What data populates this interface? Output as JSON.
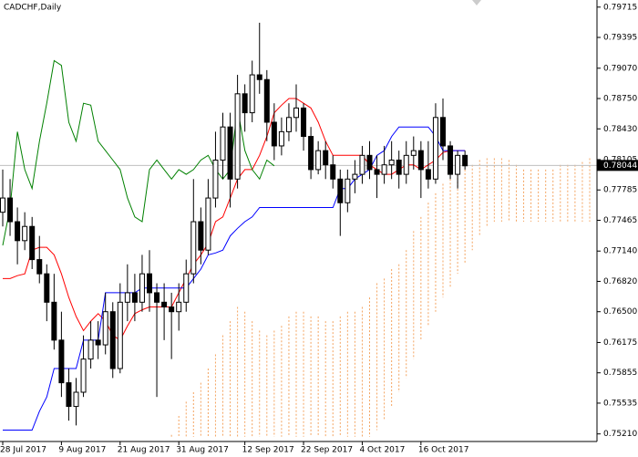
{
  "chart_data": {
    "type": "candlestick",
    "title": "CADCHF,Daily",
    "categories": [
      "28 Jul 2017",
      null,
      null,
      null,
      null,
      null,
      null,
      null,
      "9 Aug 2017",
      null,
      null,
      null,
      null,
      null,
      null,
      null,
      "21 Aug 2017",
      null,
      null,
      null,
      null,
      null,
      null,
      null,
      "31 Aug 2017",
      null,
      null,
      null,
      null,
      null,
      null,
      null,
      null,
      "12 Sep 2017",
      null,
      null,
      null,
      null,
      null,
      null,
      null,
      "22 Sep 2017",
      null,
      null,
      null,
      null,
      null,
      null,
      null,
      "4 Oct 2017",
      null,
      null,
      null,
      null,
      null,
      null,
      null,
      "16 Oct 2017",
      null,
      null,
      null,
      null,
      null,
      null,
      null,
      null,
      null,
      null,
      null,
      null,
      null,
      null,
      null,
      null,
      null,
      null,
      null,
      null,
      null,
      null,
      null,
      null
    ],
    "open": [
      0.7755,
      0.777,
      0.7745,
      0.7725,
      0.774,
      0.7705,
      0.769,
      0.766,
      0.762,
      0.7575,
      0.755,
      0.7565,
      0.76,
      0.762,
      0.7615,
      0.765,
      0.759,
      0.766,
      0.767,
      0.766,
      0.769,
      0.767,
      0.766,
      0.7655,
      0.765,
      0.766,
      0.769,
      0.7745,
      0.7715,
      0.777,
      0.781,
      0.7845,
      0.779,
      0.788,
      0.786,
      0.79,
      0.7895,
      0.785,
      0.7825,
      0.784,
      0.7855,
      0.7865,
      0.7835,
      0.78,
      0.782,
      0.7805,
      0.779,
      0.7765,
      0.779,
      0.7795,
      0.7815,
      0.78,
      0.7795,
      0.7805,
      0.781,
      0.7795,
      0.7815,
      0.782,
      0.78,
      0.779,
      0.7855,
      0.7825,
      0.7795,
      0.7815,
      null,
      null,
      null,
      null,
      null,
      null,
      null,
      null,
      null,
      null,
      null,
      null,
      null,
      null,
      null,
      null,
      null,
      null
    ],
    "high": [
      0.78,
      0.779,
      0.776,
      0.7755,
      0.775,
      0.773,
      0.77,
      0.769,
      0.765,
      0.759,
      0.758,
      0.7625,
      0.764,
      0.764,
      0.767,
      0.766,
      0.768,
      0.77,
      0.769,
      0.771,
      0.7715,
      0.768,
      0.768,
      0.767,
      0.768,
      0.7705,
      0.779,
      0.776,
      0.779,
      0.784,
      0.786,
      0.786,
      0.79,
      0.789,
      0.7915,
      0.7955,
      0.7905,
      0.787,
      0.7855,
      0.787,
      0.789,
      0.787,
      0.7845,
      0.783,
      0.783,
      0.7815,
      0.78,
      0.78,
      0.781,
      0.7825,
      0.783,
      0.7815,
      0.7825,
      0.783,
      0.782,
      0.783,
      0.7835,
      0.783,
      0.783,
      0.787,
      0.7875,
      0.783,
      0.782,
      0.782,
      null,
      null,
      null,
      null,
      null,
      null,
      null,
      null,
      null,
      null,
      null,
      null,
      null,
      null,
      null,
      null,
      null,
      null
    ],
    "low": [
      0.774,
      0.773,
      0.77,
      0.7715,
      0.7695,
      0.768,
      0.764,
      0.761,
      0.756,
      0.7535,
      0.753,
      0.756,
      0.759,
      0.76,
      0.7605,
      0.758,
      0.7585,
      0.764,
      0.764,
      0.765,
      0.765,
      0.756,
      0.762,
      0.76,
      0.763,
      0.765,
      0.768,
      0.77,
      0.771,
      0.776,
      0.779,
      0.776,
      0.778,
      0.784,
      0.785,
      0.788,
      0.783,
      0.781,
      0.7815,
      0.783,
      0.784,
      0.782,
      0.779,
      0.7795,
      0.779,
      0.778,
      0.773,
      0.7755,
      0.7775,
      0.7785,
      0.779,
      0.777,
      0.7785,
      0.779,
      0.778,
      0.7785,
      0.78,
      0.777,
      0.778,
      0.7785,
      0.781,
      0.779,
      0.778,
      0.78,
      null,
      null,
      null,
      null,
      null,
      null,
      null,
      null,
      null,
      null,
      null,
      null,
      null,
      null,
      null,
      null,
      null,
      null
    ],
    "close": [
      0.777,
      0.7745,
      0.7725,
      0.774,
      0.7705,
      0.769,
      0.766,
      0.762,
      0.7575,
      0.755,
      0.7565,
      0.76,
      0.762,
      0.7615,
      0.765,
      0.759,
      0.766,
      0.767,
      0.766,
      0.769,
      0.767,
      0.766,
      0.7655,
      0.765,
      0.766,
      0.769,
      0.7745,
      0.7715,
      0.777,
      0.781,
      0.7845,
      0.779,
      0.788,
      0.786,
      0.79,
      0.7895,
      0.785,
      0.7825,
      0.784,
      0.7855,
      0.7865,
      0.7835,
      0.78,
      0.782,
      0.7805,
      0.779,
      0.7765,
      0.779,
      0.7795,
      0.7815,
      0.78,
      0.7795,
      0.7805,
      0.781,
      0.7795,
      0.7815,
      0.782,
      0.78,
      0.779,
      0.7855,
      0.7825,
      0.7795,
      0.7815,
      0.7804,
      null,
      null,
      null,
      null,
      null,
      null,
      null,
      null,
      null,
      null,
      null,
      null,
      null,
      null,
      null,
      null,
      null,
      null
    ],
    "lines": [
      {
        "color": "#ff0000",
        "values": [
          0.7685,
          0.7685,
          0.7688,
          0.769,
          0.7715,
          0.7718,
          0.7718,
          0.771,
          0.769,
          0.7665,
          0.7645,
          0.763,
          0.764,
          0.7648,
          0.764,
          0.7625,
          0.762,
          0.7635,
          0.7648,
          0.7652,
          0.7655,
          0.7655,
          0.7655,
          0.7655,
          0.767,
          0.7685,
          0.77,
          0.771,
          0.7722,
          0.7745,
          0.775,
          0.777,
          0.779,
          0.78,
          0.78,
          0.7815,
          0.7835,
          0.786,
          0.7868,
          0.7875,
          0.7875,
          0.787,
          0.7865,
          0.785,
          0.783,
          0.7815,
          0.7815,
          0.7815,
          0.7815,
          0.7815,
          0.7805,
          0.78,
          0.7795,
          0.7795,
          0.78,
          0.7805,
          0.7805,
          0.78,
          0.7805,
          0.781,
          0.7818,
          0.782,
          0.782,
          0.782,
          null,
          null,
          null,
          null,
          null,
          null,
          null,
          null,
          null,
          null,
          null,
          null,
          null,
          null,
          null,
          null,
          null,
          null
        ]
      },
      {
        "color": "#0000ff",
        "values": [
          0.7525,
          0.7525,
          0.7525,
          0.7525,
          0.7525,
          0.7545,
          0.756,
          0.759,
          0.759,
          0.759,
          0.759,
          0.762,
          0.762,
          0.762,
          0.767,
          0.767,
          0.767,
          0.767,
          0.767,
          0.7675,
          0.7675,
          0.7675,
          0.7675,
          0.7675,
          0.7675,
          0.7675,
          0.7685,
          0.7695,
          0.771,
          0.7712,
          0.7715,
          0.773,
          0.7738,
          0.7745,
          0.775,
          0.776,
          0.776,
          0.776,
          0.776,
          0.776,
          0.776,
          0.776,
          0.776,
          0.776,
          0.776,
          0.776,
          0.778,
          0.778,
          0.779,
          0.7795,
          0.78,
          0.7815,
          0.782,
          0.7835,
          0.7845,
          0.7845,
          0.7845,
          0.7845,
          0.7845,
          0.7835,
          0.782,
          0.782,
          0.782,
          0.782,
          null,
          null,
          null,
          null,
          null,
          null,
          null,
          null,
          null,
          null,
          null,
          null,
          null,
          null,
          null,
          null,
          null,
          null
        ]
      },
      {
        "color": "#008000",
        "values": [
          0.772,
          0.776,
          0.784,
          0.78,
          0.778,
          0.783,
          0.787,
          0.7915,
          0.791,
          0.785,
          0.783,
          0.787,
          0.7868,
          0.783,
          0.782,
          0.781,
          0.78,
          0.777,
          0.775,
          0.7745,
          0.78,
          0.781,
          0.78,
          0.779,
          0.78,
          0.7795,
          0.78,
          0.781,
          0.7815,
          0.78,
          0.779,
          0.78,
          0.7865,
          0.782,
          0.78,
          0.779,
          0.781,
          0.7804,
          null,
          null,
          null,
          null,
          null,
          null,
          null,
          null,
          null,
          null,
          null,
          null,
          null,
          null,
          null,
          null,
          null,
          null,
          null,
          null,
          null,
          null,
          null,
          null,
          null,
          null,
          null,
          null,
          null,
          null,
          null,
          null,
          null,
          null,
          null,
          null,
          null,
          null,
          null,
          null,
          null,
          null,
          null,
          null
        ]
      }
    ],
    "cloud": {
      "color": "#f4a460",
      "upper": [
        null,
        null,
        null,
        null,
        null,
        null,
        null,
        null,
        null,
        null,
        null,
        null,
        null,
        null,
        null,
        null,
        null,
        null,
        null,
        null,
        null,
        null,
        null,
        0.752,
        0.754,
        0.7555,
        0.7565,
        0.7575,
        0.759,
        0.7605,
        0.7625,
        0.764,
        0.7655,
        0.765,
        0.764,
        0.763,
        0.7625,
        0.763,
        0.7635,
        0.7645,
        0.765,
        0.765,
        0.7645,
        0.7645,
        0.764,
        0.764,
        0.7645,
        0.765,
        0.765,
        0.7655,
        0.7665,
        0.768,
        0.7685,
        0.7695,
        0.77,
        0.7715,
        0.7735,
        0.775,
        0.7765,
        0.7775,
        0.7785,
        0.779,
        0.7795,
        0.78,
        0.7805,
        0.781,
        0.7812,
        0.7812,
        0.7812,
        0.781,
        0.7805,
        0.78,
        0.78,
        0.78,
        0.78,
        0.78,
        0.7805,
        0.7805,
        0.7805,
        0.7808,
        0.7812,
        0.7815
      ],
      "lower": [
        null,
        null,
        null,
        null,
        null,
        null,
        null,
        null,
        null,
        null,
        null,
        null,
        null,
        null,
        null,
        null,
        null,
        null,
        null,
        null,
        null,
        null,
        null,
        0.7518,
        0.7518,
        0.7518,
        0.7518,
        0.7518,
        0.7518,
        0.7518,
        0.7518,
        0.7518,
        0.7518,
        0.7518,
        0.7518,
        0.7518,
        0.7518,
        0.7518,
        0.7518,
        0.7518,
        0.7518,
        0.7518,
        0.7518,
        0.7518,
        0.7518,
        0.7518,
        0.7518,
        0.7518,
        0.7518,
        0.7518,
        0.7518,
        0.7525,
        0.7535,
        0.755,
        0.7565,
        0.758,
        0.76,
        0.762,
        0.7635,
        0.765,
        0.7665,
        0.7675,
        0.769,
        0.77,
        0.7715,
        0.773,
        0.774,
        0.7745,
        0.7745,
        0.7745,
        0.7745,
        0.7745,
        0.7745,
        0.7745,
        0.7745,
        0.7745,
        0.7745,
        0.7745,
        0.7745,
        0.7745,
        0.7745,
        0.7745
      ]
    },
    "last_price": 0.78044,
    "ylim": [
      0.7513,
      0.7979
    ],
    "yticks": [
      0.79715,
      0.79395,
      {
        "value": 0.7907,
        "label": "0.79070"
      },
      {
        "value": 0.7875,
        "label": "0.78750"
      },
      {
        "value": 0.7843,
        "label": "0.78430"
      },
      0.78105,
      0.77785,
      0.77465,
      {
        "value": 0.7714,
        "label": "0.77140"
      },
      {
        "value": 0.7682,
        "label": "0.76820"
      },
      {
        "value": 0.765,
        "label": "0.76500"
      },
      0.76175,
      0.75855,
      0.75535,
      {
        "value": 0.7521,
        "label": "0.75210"
      }
    ]
  }
}
